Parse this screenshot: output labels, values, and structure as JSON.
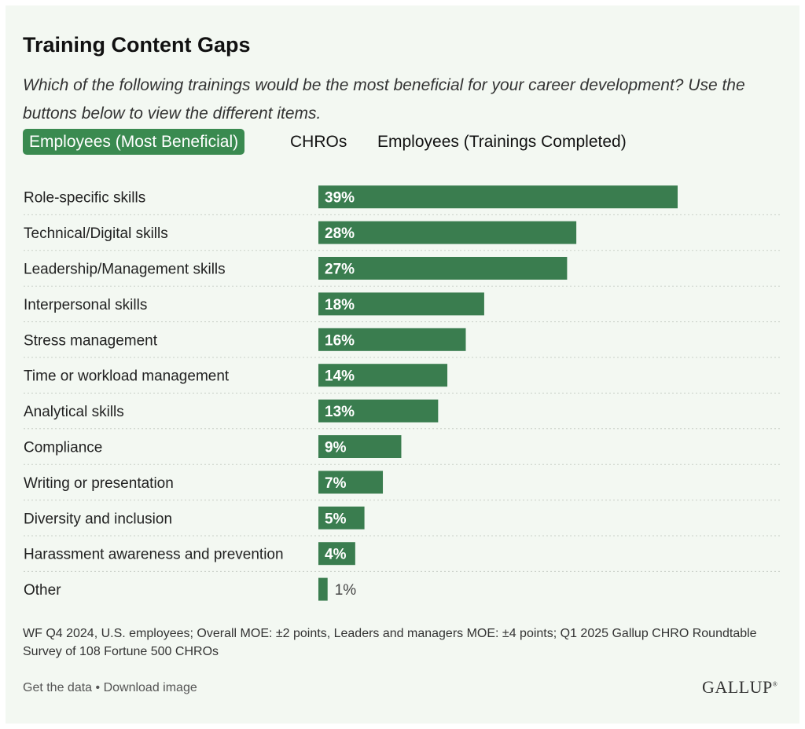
{
  "header": {
    "title": "Training Content Gaps",
    "subtitle": "Which of the following trainings would be the most beneficial for your career development? Use the buttons below to view the different items."
  },
  "tabs": [
    {
      "label": "Employees (Most Beneficial)",
      "active": true
    },
    {
      "label": "CHROs",
      "active": false
    },
    {
      "label": "Employees (Trainings Completed)",
      "active": false
    }
  ],
  "colors": {
    "bar": "#3a7d4f",
    "background": "#f3f8f2",
    "active_tab": "#3a8a50"
  },
  "chart_data": {
    "type": "bar",
    "orientation": "horizontal",
    "categories": [
      "Role-specific skills",
      "Technical/Digital skills",
      "Leadership/Management skills",
      "Interpersonal skills",
      "Stress management",
      "Time or workload management",
      "Analytical skills",
      "Compliance",
      "Writing or presentation",
      "Diversity and inclusion",
      "Harassment awareness and prevention",
      "Other"
    ],
    "values": [
      39,
      28,
      27,
      18,
      16,
      14,
      13,
      9,
      7,
      5,
      4,
      1
    ],
    "labels": [
      "39%",
      "28%",
      "27%",
      "18%",
      "16%",
      "14%",
      "13%",
      "9%",
      "7%",
      "5%",
      "4%",
      "1%"
    ],
    "unit": "%",
    "xlim": [
      0,
      39
    ]
  },
  "source": "WF Q4 2024, U.S. employees; Overall MOE: ±2 points, Leaders and managers MOE: ±4 points; Q1 2025 Gallup CHRO Roundtable Survey of 108 Fortune 500 CHROs",
  "footer": {
    "get_data": "Get the data",
    "separator": " • ",
    "download": "Download image",
    "logo": "GALLUP",
    "logo_mark": "®"
  }
}
